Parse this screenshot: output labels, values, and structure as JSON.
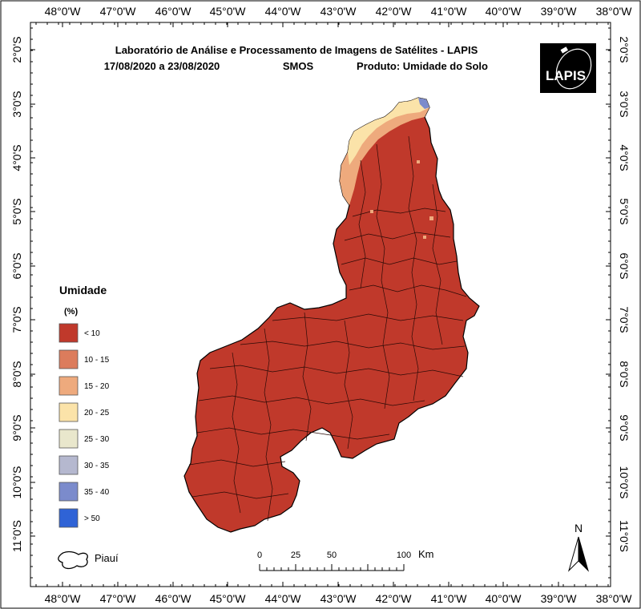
{
  "title": {
    "line1": "Laboratório de Análise e Processamento de Imagens de Satélites - LAPIS",
    "line2_dates": "17/08/2020  a  23/08/2020",
    "line2_sensor": "SMOS",
    "line2_product": "Produto: Umidade do Solo"
  },
  "logo": {
    "text": "LAPIS"
  },
  "axes": {
    "longitude_labels": [
      "48°0'W",
      "47°0'W",
      "46°0'W",
      "45°0'W",
      "44°0'W",
      "43°0'W",
      "42°0'W",
      "41°0'W",
      "40°0'W",
      "39°0'W",
      "38°0'W"
    ],
    "latitude_labels": [
      "2°0'S",
      "3°0'S",
      "4°0'S",
      "5°0'S",
      "6°0'S",
      "7°0'S",
      "8°0'S",
      "9°0'S",
      "10°0'S",
      "11°0'S"
    ]
  },
  "legend": {
    "title": "Umidade",
    "unit": "(%)",
    "items": [
      {
        "label": "< 10",
        "color": "#c0392b"
      },
      {
        "label": "10 - 15",
        "color": "#dc7c5c"
      },
      {
        "label": "15 - 20",
        "color": "#eeaa7d"
      },
      {
        "label": "20 - 25",
        "color": "#fbe3a9"
      },
      {
        "label": "25 - 30",
        "color": "#e9e7cc"
      },
      {
        "label": "30 - 35",
        "color": "#b5b8cf"
      },
      {
        "label": "35 - 40",
        "color": "#7b8bcc"
      },
      {
        "label": "> 50",
        "color": "#2f63d6"
      }
    ]
  },
  "boundary_legend": {
    "label": "Piauí"
  },
  "scale_bar": {
    "labels": [
      "0",
      "25",
      "50",
      "100"
    ],
    "unit": "Km"
  },
  "north_arrow": {
    "letter": "N"
  },
  "colors": {
    "dry": "#c0392b",
    "moist": "#eeaa7d",
    "wet": "#fbe3a9"
  }
}
